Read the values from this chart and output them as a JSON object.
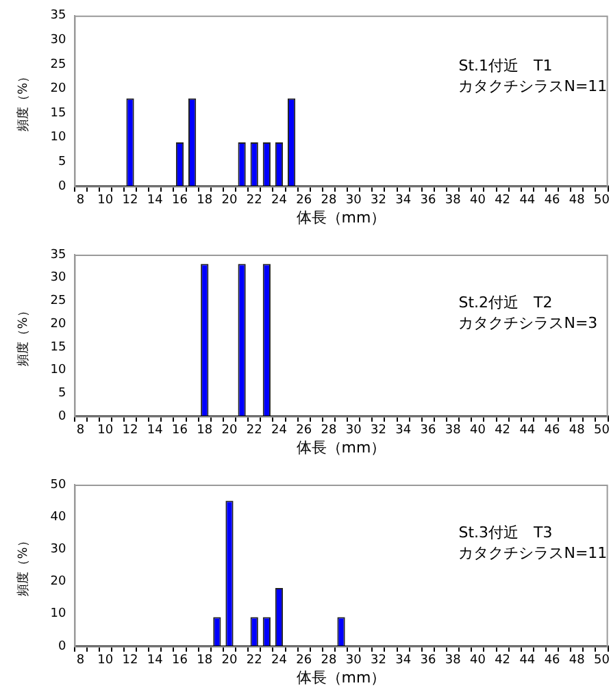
{
  "chart_data": [
    {
      "type": "bar",
      "xlabel": "体長（mm）",
      "ylabel": "頻度（%）",
      "annotations": [
        "St.1付近　T1",
        "カタクチシラスN=11"
      ],
      "categories": [
        "8",
        null,
        "10",
        null,
        "12",
        null,
        "14",
        null,
        "16",
        null,
        "18",
        null,
        "20",
        null,
        "22",
        null,
        "24",
        null,
        "26",
        null,
        "28",
        null,
        "30",
        null,
        "32",
        null,
        "34",
        null,
        "36",
        null,
        "38",
        null,
        "40",
        null,
        "42",
        null,
        "44",
        null,
        "46",
        null,
        "48",
        null,
        "50"
      ],
      "values": [
        0,
        0,
        0,
        0,
        18,
        0,
        0,
        0,
        9,
        18,
        0,
        0,
        0,
        9,
        9,
        9,
        9,
        18,
        0,
        0,
        0,
        0,
        0,
        0,
        0,
        0,
        0,
        0,
        0,
        0,
        0,
        0,
        0,
        0,
        0,
        0,
        0,
        0,
        0,
        0,
        0,
        0,
        0
      ],
      "color": "#0000ff",
      "ylim": [
        0,
        35
      ],
      "yticks": [
        0,
        5,
        10,
        15,
        20,
        25,
        30,
        35
      ],
      "grid": false,
      "legend": false
    },
    {
      "type": "bar",
      "xlabel": "体長（mm）",
      "ylabel": "頻度（%）",
      "annotations": [
        "St.2付近　T2",
        "カタクチシラスN=3"
      ],
      "categories": [
        "8",
        null,
        "10",
        null,
        "12",
        null,
        "14",
        null,
        "16",
        null,
        "18",
        null,
        "20",
        null,
        "22",
        null,
        "24",
        null,
        "26",
        null,
        "28",
        null,
        "30",
        null,
        "32",
        null,
        "34",
        null,
        "36",
        null,
        "38",
        null,
        "40",
        null,
        "42",
        null,
        "44",
        null,
        "46",
        null,
        "48",
        null,
        "50"
      ],
      "values": [
        0,
        0,
        0,
        0,
        0,
        0,
        0,
        0,
        0,
        0,
        33,
        0,
        0,
        33,
        0,
        33,
        0,
        0,
        0,
        0,
        0,
        0,
        0,
        0,
        0,
        0,
        0,
        0,
        0,
        0,
        0,
        0,
        0,
        0,
        0,
        0,
        0,
        0,
        0,
        0,
        0,
        0,
        0
      ],
      "color": "#0000ff",
      "ylim": [
        0,
        35
      ],
      "yticks": [
        0,
        5,
        10,
        15,
        20,
        25,
        30,
        35
      ],
      "grid": false,
      "legend": false
    },
    {
      "type": "bar",
      "xlabel": "体長（mm）",
      "ylabel": "頻度（%）",
      "annotations": [
        "St.3付近　T3",
        "カタクチシラスN=11"
      ],
      "categories": [
        "8",
        null,
        "10",
        null,
        "12",
        null,
        "14",
        null,
        "16",
        null,
        "18",
        null,
        "20",
        null,
        "22",
        null,
        "24",
        null,
        "26",
        null,
        "28",
        null,
        "30",
        null,
        "32",
        null,
        "34",
        null,
        "36",
        null,
        "38",
        null,
        "40",
        null,
        "42",
        null,
        "44",
        null,
        "46",
        null,
        "48",
        null,
        "50"
      ],
      "values": [
        0,
        0,
        0,
        0,
        0,
        0,
        0,
        0,
        0,
        0,
        0,
        9,
        45,
        0,
        9,
        9,
        18,
        0,
        0,
        0,
        0,
        9,
        0,
        0,
        0,
        0,
        0,
        0,
        0,
        0,
        0,
        0,
        0,
        0,
        0,
        0,
        0,
        0,
        0,
        0,
        0,
        0,
        0
      ],
      "color": "#0000ff",
      "ylim": [
        0,
        50
      ],
      "yticks": [
        0,
        10,
        20,
        30,
        40,
        50
      ],
      "grid": false,
      "legend": false
    }
  ]
}
